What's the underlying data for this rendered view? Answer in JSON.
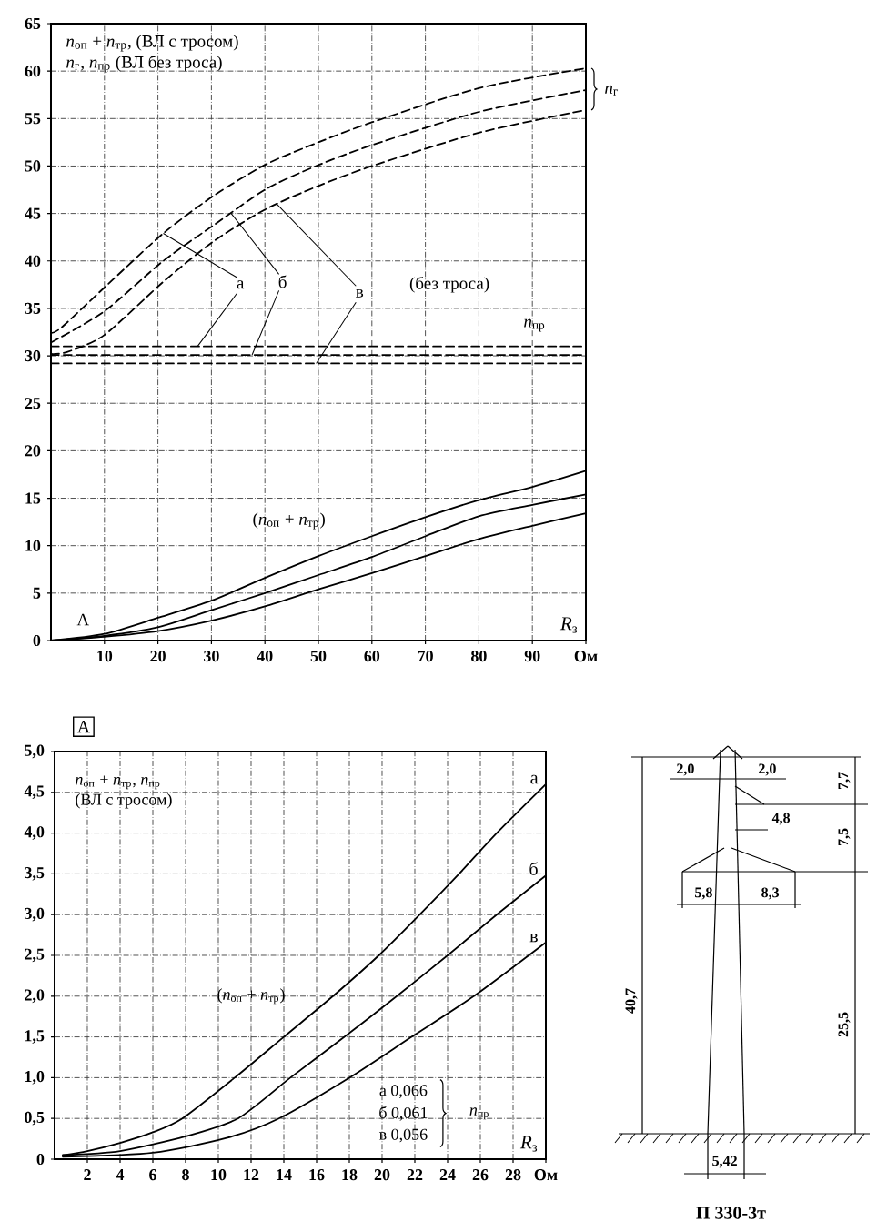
{
  "chart_data": [
    {
      "type": "line",
      "ylabel": "*n*$_{оп}$ + *n*$_{тр}$, (ВЛ с тросом) *n*$_{г}$, *n*$_{пр}$ (ВЛ без троса)",
      "xlabel": "*R*$_{з}$",
      "xlim": [
        0,
        100
      ],
      "xticks": [
        10,
        20,
        30,
        40,
        50,
        60,
        70,
        80,
        90,
        {
          "value": 100,
          "label": "Ом"
        }
      ],
      "ylim": [
        0,
        65
      ],
      "yticks": [
        0,
        5,
        10,
        15,
        20,
        25,
        30,
        35,
        40,
        45,
        50,
        55,
        60,
        65
      ],
      "grid": true,
      "series": [
        {
          "color": "#000000",
          "line_style": "dashed",
          "x": [
            0,
            2,
            10,
            21,
            30.5,
            40.3,
            50,
            60,
            80,
            100
          ],
          "values": [
            32.4,
            33.0,
            37.2,
            42.9,
            46.9,
            50.2,
            52.5,
            54.6,
            58.2,
            60.3
          ]
        },
        {
          "color": "#000000",
          "line_style": "dashed",
          "x": [
            0,
            10,
            21,
            30.5,
            40.3,
            50,
            60,
            80,
            100
          ],
          "values": [
            31.4,
            34.7,
            40.0,
            43.8,
            47.6,
            50.1,
            52.2,
            55.7,
            58.0
          ]
        },
        {
          "color": "#000000",
          "line_style": "dashed",
          "x": [
            0,
            3,
            10,
            21,
            30.5,
            40.3,
            50,
            60,
            80,
            100
          ],
          "values": [
            30.2,
            30.4,
            32.2,
            37.8,
            42.1,
            45.5,
            47.9,
            50.0,
            53.5,
            55.9
          ]
        },
        {
          "color": "#000000",
          "line_style": "dashed",
          "x": [
            0,
            100
          ],
          "values": [
            31.0,
            31.0
          ]
        },
        {
          "color": "#000000",
          "line_style": "dashed",
          "x": [
            0,
            100
          ],
          "values": [
            30.1,
            30.1
          ]
        },
        {
          "color": "#000000",
          "line_style": "dashed",
          "x": [
            0,
            100
          ],
          "values": [
            29.2,
            29.2
          ]
        },
        {
          "color": "#000000",
          "line_style": "solid",
          "x": [
            0,
            10,
            20,
            30,
            40,
            50,
            60,
            70,
            80,
            90,
            100
          ],
          "values": [
            0,
            0.7,
            2.4,
            4.2,
            6.6,
            8.9,
            11.0,
            13.0,
            14.8,
            16.2,
            17.9
          ]
        },
        {
          "color": "#000000",
          "line_style": "solid",
          "x": [
            0,
            10,
            20,
            30,
            40,
            50,
            60,
            70,
            80,
            90,
            100
          ],
          "values": [
            0,
            0.5,
            1.4,
            3.2,
            5.0,
            6.9,
            8.8,
            11.0,
            13.1,
            14.3,
            15.4
          ]
        },
        {
          "color": "#000000",
          "line_style": "solid",
          "x": [
            0,
            10,
            20,
            30,
            40,
            50,
            60,
            70,
            80,
            90,
            100
          ],
          "values": [
            0,
            0.4,
            1.0,
            2.1,
            3.6,
            5.4,
            7.1,
            8.9,
            10.7,
            12.1,
            13.4
          ]
        }
      ],
      "annotations": [
        {
          "text": "а",
          "x": 21,
          "y": 42.9
        },
        {
          "text": "б",
          "x": 33.7,
          "y": 45.0
        },
        {
          "text": "в",
          "x": 42.2,
          "y": 46.0
        },
        "(без троса)",
        "*n*$_{пр}$",
        "*n*$_{г}$",
        "(*n*$_{оп}$ + *n*$_{тр}$)",
        "А"
      ]
    },
    {
      "type": "line",
      "title": "А",
      "ylabel": "*n*$_{оп}$ + *n*$_{тр}$, *n*$_{пр}$ (ВЛ с тросом)",
      "xlabel": "*R*$_{з}$",
      "xlim": [
        0,
        30
      ],
      "xticks": [
        2,
        4,
        6,
        8,
        10,
        12,
        14,
        16,
        18,
        20,
        22,
        24,
        26,
        28,
        {
          "value": 30,
          "label": "Ом"
        }
      ],
      "ylim": [
        0,
        5
      ],
      "yticks": [
        0,
        {
          "value": 0.5,
          "label": "0,5"
        },
        {
          "value": 1,
          "label": "1,0"
        },
        {
          "value": 1.5,
          "label": "1,5"
        },
        {
          "value": 2,
          "label": "2,0"
        },
        {
          "value": 2.5,
          "label": "2,5"
        },
        {
          "value": 3,
          "label": "3,0"
        },
        {
          "value": 3.5,
          "label": "3,5"
        },
        {
          "value": 4,
          "label": "4,0"
        },
        {
          "value": 4.5,
          "label": "4,5"
        },
        {
          "value": 5,
          "label": "5,0"
        }
      ],
      "grid": true,
      "series": [
        {
          "name": "а",
          "color": "#000000",
          "line_style": "solid",
          "x": [
            0.5,
            2,
            4,
            6,
            7.8,
            11,
            14,
            17,
            19.8,
            22.3,
            24.7,
            27,
            30
          ],
          "values": [
            0.05,
            0.1,
            0.2,
            0.33,
            0.5,
            1.0,
            1.5,
            2.0,
            2.5,
            3.0,
            3.5,
            4.0,
            4.6
          ]
        },
        {
          "name": "б",
          "color": "#000000",
          "line_style": "solid",
          "x": [
            0.5,
            4,
            8,
            11.2,
            14.4,
            17.7,
            20.9,
            24,
            27,
            30
          ],
          "values": [
            0.05,
            0.1,
            0.28,
            0.5,
            1.0,
            1.5,
            2.0,
            2.5,
            3.0,
            3.48
          ]
        },
        {
          "name": "в",
          "color": "#000000",
          "line_style": "solid",
          "x": [
            0.5,
            6,
            10.5,
            13.7,
            18,
            21.8,
            25.6,
            30
          ],
          "values": [
            0.03,
            0.08,
            0.26,
            0.5,
            1.0,
            1.5,
            2.0,
            2.66
          ]
        }
      ],
      "annotations": [
        "(*n*$_{оп}$ + *n*$_{тр}$)",
        "а 0,066",
        "б 0,061",
        "в 0,056",
        "*n*$_{пр}$"
      ]
    },
    {
      "type": "other",
      "title": "П 330-3т",
      "annotations": [
        "2,0",
        "2,0",
        "7,7",
        "4,8",
        "7,5",
        "5,8",
        "8,3",
        "40,7",
        "25,5",
        "5,42"
      ]
    }
  ]
}
